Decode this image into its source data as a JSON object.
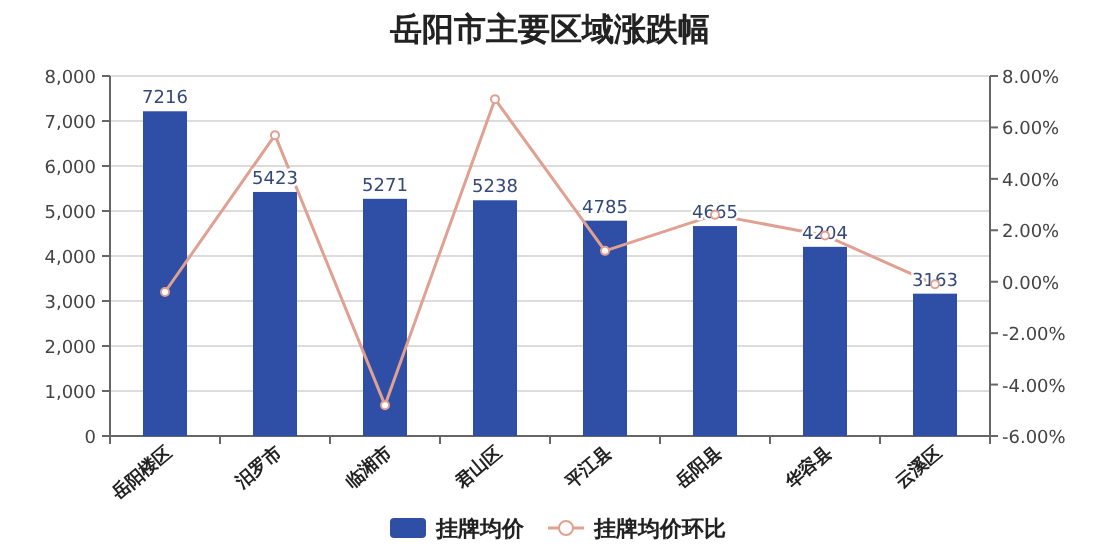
{
  "chart_data": {
    "type": "bar",
    "title": "岳阳市主要区域涨跌幅",
    "categories": [
      "岳阳楼区",
      "汨罗市",
      "临湘市",
      "君山区",
      "平江县",
      "岳阳县",
      "华容县",
      "云溪区"
    ],
    "series": [
      {
        "name": "挂牌均价",
        "color": "#2f4fa6",
        "values": [
          7216,
          5423,
          5271,
          5238,
          4785,
          4665,
          4204,
          3163
        ],
        "data_labels": true
      },
      {
        "name": "挂牌均价环比",
        "type": "line",
        "axis": "y2",
        "color": "#e0a092",
        "marker": "circle",
        "values": [
          -0.4,
          5.7,
          -4.8,
          7.1,
          1.2,
          2.6,
          1.8,
          -0.1
        ]
      }
    ],
    "ylim": [
      0,
      8000
    ],
    "yticks": [
      {
        "value": 0,
        "label": "0"
      },
      {
        "value": 1000,
        "label": "1,000"
      },
      {
        "value": 2000,
        "label": "2,000"
      },
      {
        "value": 3000,
        "label": "3,000"
      },
      {
        "value": 4000,
        "label": "4,000"
      },
      {
        "value": 5000,
        "label": "5,000"
      },
      {
        "value": 6000,
        "label": "6,000"
      },
      {
        "value": 7000,
        "label": "7,000"
      },
      {
        "value": 8000,
        "label": "8,000"
      }
    ],
    "y2lim": [
      -6,
      8
    ],
    "y2ticks": [
      {
        "value": -6,
        "label": "-6.00%"
      },
      {
        "value": -4,
        "label": "-4.00%"
      },
      {
        "value": -2,
        "label": "-2.00%"
      },
      {
        "value": 0,
        "label": "0.00%"
      },
      {
        "value": 2,
        "label": "2.00%"
      },
      {
        "value": 4,
        "label": "4.00%"
      },
      {
        "value": 6,
        "label": "6.00%"
      },
      {
        "value": 8,
        "label": "8.00%"
      }
    ],
    "grid": "y",
    "legend": "bottom"
  }
}
